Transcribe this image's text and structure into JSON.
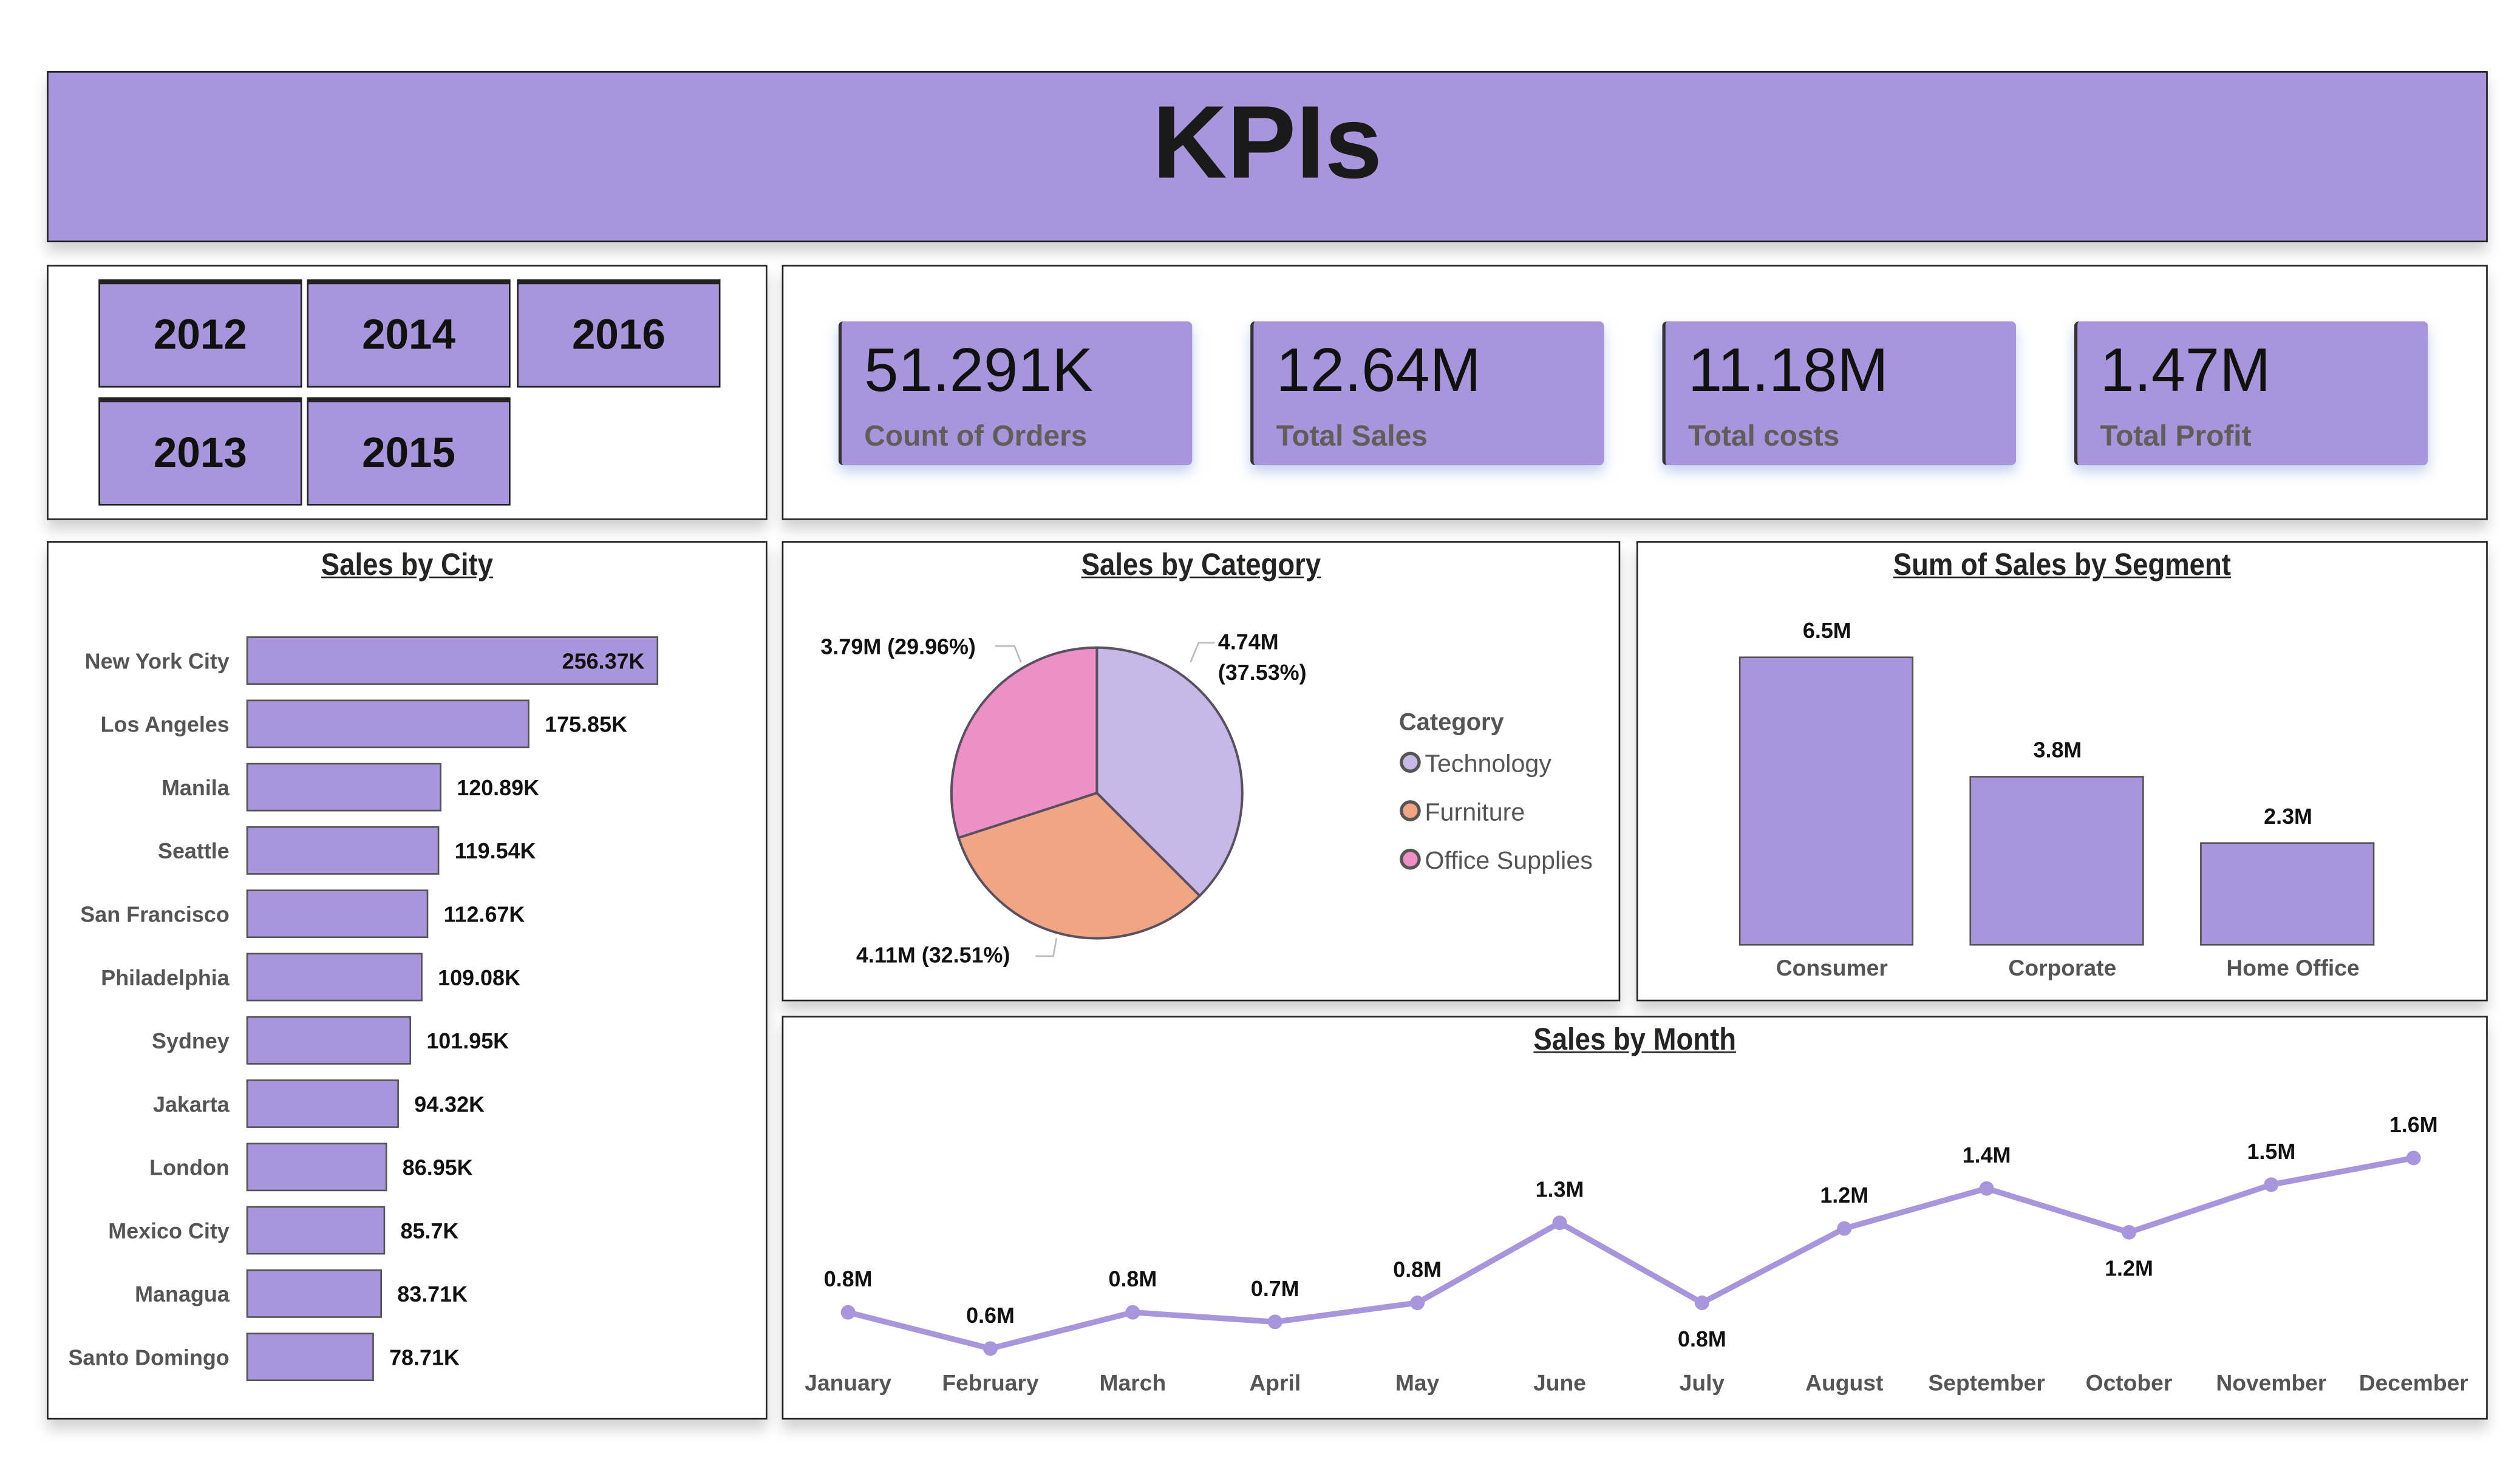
{
  "header": {
    "title": "KPIs"
  },
  "years": {
    "buttons": [
      "2012",
      "2014",
      "2016",
      "2013",
      "2015"
    ]
  },
  "kpis": [
    {
      "value": "51.291K",
      "label": "Count of Orders"
    },
    {
      "value": "12.64M",
      "label": "Total Sales"
    },
    {
      "value": "11.18M",
      "label": "Total costs"
    },
    {
      "value": "1.47M",
      "label": "Total Profit"
    }
  ],
  "colors": {
    "accent": "#a995db",
    "technology": "#c8b8e8",
    "furniture": "#f0a585",
    "office_supplies": "#ee90c8"
  },
  "chart_data": [
    {
      "type": "bar",
      "orientation": "horizontal",
      "title": "Sales by City",
      "categories": [
        "New York City",
        "Los Angeles",
        "Manila",
        "Seattle",
        "San Francisco",
        "Philadelphia",
        "Sydney",
        "Jakarta",
        "London",
        "Mexico City",
        "Managua",
        "Santo Domingo"
      ],
      "values": [
        256.37,
        175.85,
        120.89,
        119.54,
        112.67,
        109.08,
        101.95,
        94.32,
        86.95,
        85.7,
        83.71,
        78.71
      ],
      "labels": [
        "256.37K",
        "175.85K",
        "120.89K",
        "119.54K",
        "112.67K",
        "109.08K",
        "101.95K",
        "94.32K",
        "86.95K",
        "85.7K",
        "83.71K",
        "78.71K"
      ],
      "unit": "K"
    },
    {
      "type": "pie",
      "title": "Sales by Category",
      "legend_title": "Category",
      "legend_position": "right",
      "categories": [
        "Technology",
        "Furniture",
        "Office Supplies"
      ],
      "values": [
        4.74,
        4.11,
        3.79
      ],
      "percents": [
        37.53,
        32.51,
        29.96
      ],
      "labels": [
        "4.74M (37.53%)",
        "4.11M (32.51%)",
        "3.79M (29.96%)"
      ],
      "label_lines": [
        [
          "4.74M",
          "(37.53%)"
        ],
        [
          "4.11M (32.51%)"
        ],
        [
          "3.79M (29.96%)"
        ]
      ]
    },
    {
      "type": "bar",
      "title": "Sum of Sales by Segment",
      "categories": [
        "Consumer",
        "Corporate",
        "Home Office"
      ],
      "values": [
        6.5,
        3.8,
        2.3
      ],
      "labels": [
        "6.5M",
        "3.8M",
        "2.3M"
      ]
    },
    {
      "type": "line",
      "title": "Sales by Month",
      "categories": [
        "January",
        "February",
        "March",
        "April",
        "May",
        "June",
        "July",
        "August",
        "September",
        "October",
        "November",
        "December"
      ],
      "values": [
        0.79,
        0.6,
        0.79,
        0.74,
        0.84,
        1.26,
        0.84,
        1.23,
        1.44,
        1.21,
        1.46,
        1.6
      ],
      "labels": [
        "0.8M",
        "0.6M",
        "0.8M",
        "0.7M",
        "0.8M",
        "1.3M",
        "0.8M",
        "1.2M",
        "1.4M",
        "1.2M",
        "1.5M",
        "1.6M"
      ],
      "label_below": [
        false,
        false,
        false,
        false,
        false,
        false,
        true,
        false,
        false,
        true,
        false,
        false
      ]
    }
  ]
}
